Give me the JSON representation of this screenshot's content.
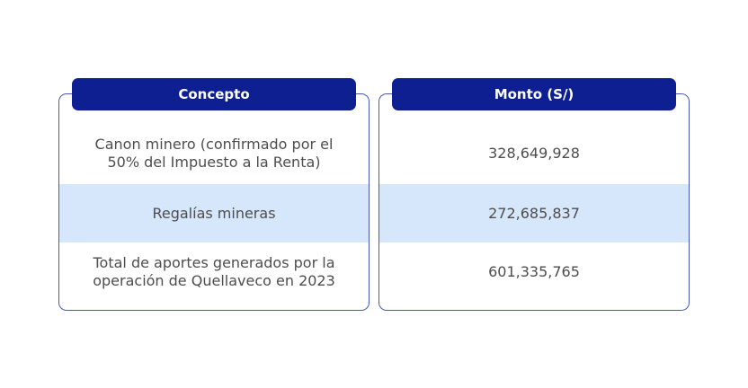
{
  "table": {
    "headers": {
      "concept": "Concepto",
      "amount": "Monto (S/)"
    },
    "rows": [
      {
        "concept": "Canon minero (confirmado por el 50% del Impuesto a la Renta)",
        "amount": "328,649,928"
      },
      {
        "concept": "Regalías mineras",
        "amount": "272,685,837"
      },
      {
        "concept": "Total de aportes generados por la operación de Quellaveco en 2023",
        "amount": "601,335,765"
      }
    ],
    "colors": {
      "header_bg": "#0e1f91",
      "border": "#4a58b5",
      "highlight_row": "#d6e6fb",
      "text": "#4d4d4d"
    }
  }
}
